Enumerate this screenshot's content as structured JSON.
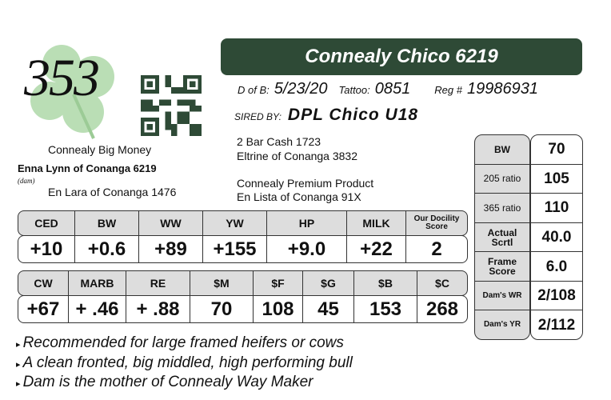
{
  "lot_number": "353",
  "title": "Connealy Chico 6219",
  "dob_label": "D of B:",
  "dob": "5/23/20",
  "tattoo_label": "Tattoo:",
  "tattoo": "0851",
  "reg_label": "Reg #",
  "reg": "19986931",
  "sired_label": "SIRED BY:",
  "sire": "DPL Chico U18",
  "pedigree": {
    "sire_sire_sire": "2 Bar Cash 1723",
    "sire_sire_dam": "Eltrine of Conanga 3832",
    "sire_dam_sire": "Connealy Premium Product",
    "sire_dam_dam": "En Lista of Conanga 91X",
    "dam_sire": "Connealy Big Money",
    "dam": "Enna Lynn of Conanga 6219",
    "dam_label": "(dam)",
    "dam_dam": "En Lara of Conanga 1476"
  },
  "epd_row1": {
    "headers": [
      "CED",
      "BW",
      "WW",
      "YW",
      "HP",
      "MILK",
      "Our Docility Score"
    ],
    "values": [
      "+10",
      "+0.6",
      "+89",
      "+155",
      "+9.0",
      "+22",
      "2"
    ]
  },
  "epd_row2": {
    "headers": [
      "CW",
      "MARB",
      "RE",
      "$M",
      "$F",
      "$G",
      "$B",
      "$C"
    ],
    "values": [
      "+67",
      "+ .46",
      "+ .88",
      "70",
      "108",
      "45",
      "153",
      "268"
    ]
  },
  "side": {
    "labels": [
      "BW",
      "205 ratio",
      "365 ratio",
      "Actual Scrtl",
      "Frame Score",
      "Dam's WR",
      "Dam's YR"
    ],
    "values": [
      "70",
      "105",
      "110",
      "40.0",
      "6.0",
      "2/108",
      "2/112"
    ]
  },
  "bullets": [
    "Recommended for large framed heifers or cows",
    "A clean fronted, big middled, high performing bull",
    "Dam is the mother of Connealy Way Maker"
  ],
  "colors": {
    "title_bar": "#2e4a36",
    "header_cells": "#dddddd",
    "shamrock": "#a9d3a4"
  }
}
